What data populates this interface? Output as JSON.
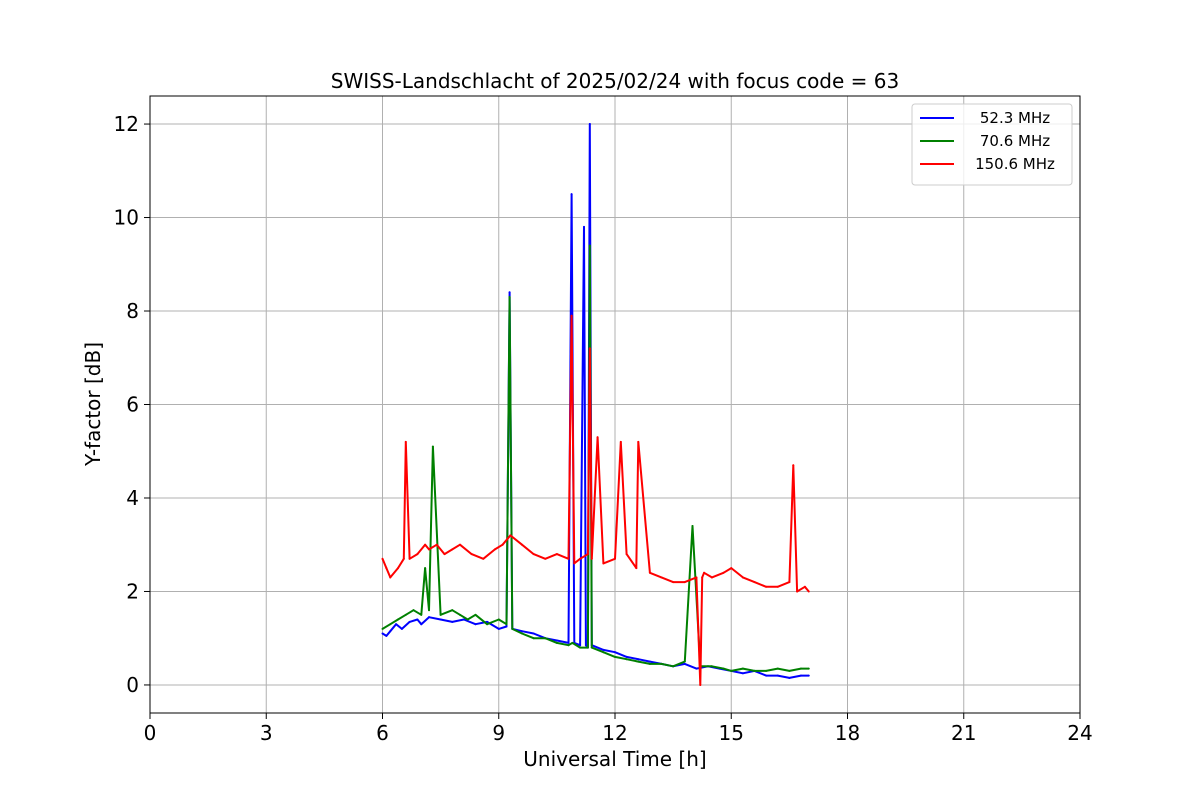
{
  "chart_data": {
    "type": "line",
    "title": "SWISS-Landschlacht of 2025/02/24 with focus code = 63",
    "xlabel": "Universal Time [h]",
    "ylabel": "Y-factor [dB]",
    "xlim": [
      0,
      24
    ],
    "ylim": [
      -0.6,
      12.6
    ],
    "xticks": [
      0,
      3,
      6,
      9,
      12,
      15,
      18,
      21,
      24
    ],
    "yticks": [
      0,
      2,
      4,
      6,
      8,
      10,
      12
    ],
    "grid": true,
    "legend_position": "top-right",
    "series": [
      {
        "name": "52.3 MHz",
        "color": "#0000ff",
        "x": [
          6.0,
          6.1,
          6.2,
          6.35,
          6.5,
          6.7,
          6.9,
          7.0,
          7.2,
          7.5,
          7.8,
          8.1,
          8.4,
          8.7,
          9.0,
          9.2,
          9.28,
          9.35,
          9.6,
          9.9,
          10.2,
          10.5,
          10.8,
          10.88,
          10.95,
          11.1,
          11.2,
          11.25,
          11.3,
          11.35,
          11.4,
          11.7,
          12.0,
          12.3,
          12.6,
          12.9,
          13.2,
          13.5,
          13.8,
          14.1,
          14.4,
          14.7,
          15.0,
          15.3,
          15.6,
          15.9,
          16.2,
          16.5,
          16.8,
          17.0
        ],
        "y": [
          1.1,
          1.05,
          1.15,
          1.3,
          1.2,
          1.35,
          1.4,
          1.3,
          1.45,
          1.4,
          1.35,
          1.4,
          1.3,
          1.35,
          1.2,
          1.25,
          8.4,
          1.2,
          1.15,
          1.1,
          1.0,
          0.95,
          0.9,
          10.5,
          0.9,
          0.85,
          9.8,
          0.85,
          0.8,
          12.0,
          0.85,
          0.75,
          0.7,
          0.6,
          0.55,
          0.5,
          0.45,
          0.4,
          0.45,
          0.35,
          0.4,
          0.35,
          0.3,
          0.25,
          0.3,
          0.2,
          0.2,
          0.15,
          0.2,
          0.2
        ]
      },
      {
        "name": "70.6 MHz",
        "color": "#008000",
        "x": [
          6.0,
          6.2,
          6.4,
          6.6,
          6.8,
          7.0,
          7.1,
          7.2,
          7.3,
          7.5,
          7.8,
          8.0,
          8.2,
          8.4,
          8.7,
          9.0,
          9.2,
          9.28,
          9.35,
          9.6,
          9.9,
          10.2,
          10.5,
          10.8,
          10.9,
          11.1,
          11.3,
          11.35,
          11.4,
          11.7,
          12.0,
          12.3,
          12.6,
          12.9,
          13.2,
          13.5,
          13.8,
          14.0,
          14.2,
          14.5,
          14.8,
          15.0,
          15.3,
          15.6,
          15.9,
          16.2,
          16.5,
          16.8,
          17.0
        ],
        "y": [
          1.2,
          1.3,
          1.4,
          1.5,
          1.6,
          1.5,
          2.5,
          1.6,
          5.1,
          1.5,
          1.6,
          1.5,
          1.4,
          1.5,
          1.3,
          1.4,
          1.3,
          8.3,
          1.2,
          1.1,
          1.0,
          1.0,
          0.9,
          0.85,
          0.9,
          0.8,
          0.8,
          9.4,
          0.8,
          0.7,
          0.6,
          0.55,
          0.5,
          0.45,
          0.45,
          0.4,
          0.5,
          3.4,
          0.4,
          0.4,
          0.35,
          0.3,
          0.35,
          0.3,
          0.3,
          0.35,
          0.3,
          0.35,
          0.35
        ]
      },
      {
        "name": "150.6 MHz",
        "color": "#ff0000",
        "x": [
          6.0,
          6.1,
          6.2,
          6.4,
          6.55,
          6.6,
          6.7,
          6.9,
          7.1,
          7.2,
          7.4,
          7.6,
          7.8,
          8.0,
          8.3,
          8.6,
          8.9,
          9.1,
          9.3,
          9.6,
          9.9,
          10.2,
          10.5,
          10.8,
          10.88,
          10.95,
          11.1,
          11.3,
          11.35,
          11.4,
          11.55,
          11.7,
          12.0,
          12.15,
          12.3,
          12.55,
          12.6,
          12.9,
          13.2,
          13.5,
          13.8,
          14.1,
          14.2,
          14.25,
          14.3,
          14.5,
          14.8,
          15.0,
          15.3,
          15.6,
          15.9,
          16.2,
          16.5,
          16.6,
          16.7,
          16.9,
          17.0
        ],
        "y": [
          2.7,
          2.5,
          2.3,
          2.5,
          2.7,
          5.2,
          2.7,
          2.8,
          3.0,
          2.9,
          3.0,
          2.8,
          2.9,
          3.0,
          2.8,
          2.7,
          2.9,
          3.0,
          3.2,
          3.0,
          2.8,
          2.7,
          2.8,
          2.7,
          7.9,
          2.6,
          2.7,
          2.8,
          7.2,
          2.7,
          5.3,
          2.6,
          2.7,
          5.2,
          2.8,
          2.5,
          5.2,
          2.4,
          2.3,
          2.2,
          2.2,
          2.3,
          0.0,
          2.3,
          2.4,
          2.3,
          2.4,
          2.5,
          2.3,
          2.2,
          2.1,
          2.1,
          2.2,
          4.7,
          2.0,
          2.1,
          2.0
        ]
      }
    ]
  }
}
